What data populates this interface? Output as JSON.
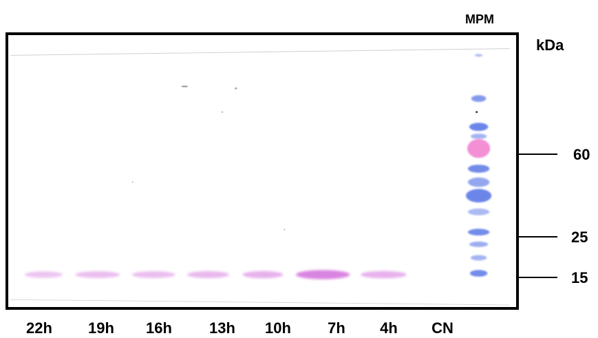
{
  "marker_lane_label": "MPM",
  "unit_label": "kDa",
  "molecular_weight_markers": [
    {
      "label": "60",
      "value_kda": 60
    },
    {
      "label": "25",
      "value_kda": 25
    },
    {
      "label": "15",
      "value_kda": 15
    }
  ],
  "lanes": [
    {
      "label": "22h",
      "band_15kda_intensity": 0.45
    },
    {
      "label": "19h",
      "band_15kda_intensity": 0.5
    },
    {
      "label": "16h",
      "band_15kda_intensity": 0.5
    },
    {
      "label": "13h",
      "band_15kda_intensity": 0.55
    },
    {
      "label": "10h",
      "band_15kda_intensity": 0.6
    },
    {
      "label": "7h",
      "band_15kda_intensity": 0.95
    },
    {
      "label": "4h",
      "band_15kda_intensity": 0.6
    },
    {
      "label": "CN",
      "band_15kda_intensity": 0
    }
  ],
  "colors": {
    "sample_band": "#d77ee0",
    "marker_blue": "#5b78e6",
    "marker_pink": "#f06cc8",
    "frame": "#000000"
  }
}
